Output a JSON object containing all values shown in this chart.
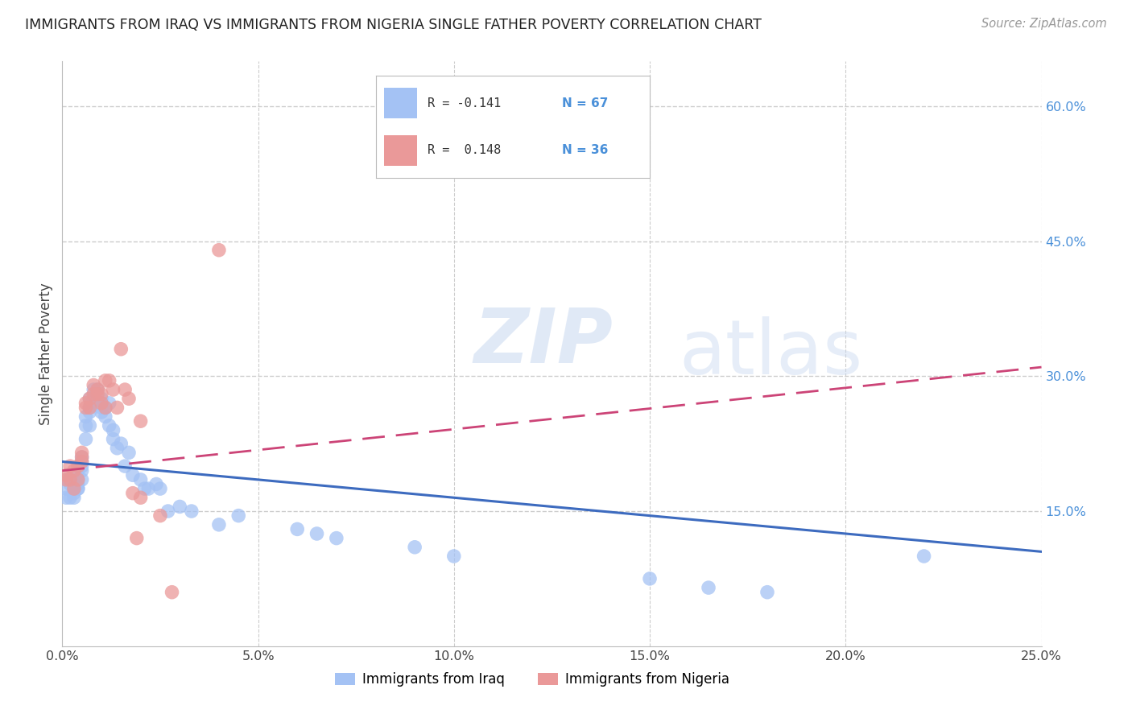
{
  "title": "IMMIGRANTS FROM IRAQ VS IMMIGRANTS FROM NIGERIA SINGLE FATHER POVERTY CORRELATION CHART",
  "source": "Source: ZipAtlas.com",
  "ylabel": "Single Father Poverty",
  "xlim": [
    0.0,
    0.25
  ],
  "ylim": [
    0.0,
    0.65
  ],
  "iraq_R": "-0.141",
  "iraq_N": "67",
  "nigeria_R": "0.148",
  "nigeria_N": "36",
  "iraq_color": "#a4c2f4",
  "nigeria_color": "#ea9999",
  "iraq_line_color": "#3d6bbf",
  "nigeria_line_color": "#cc4477",
  "background_color": "#ffffff",
  "grid_color": "#cccccc",
  "right_axis_color": "#4a90d9",
  "watermark_zip": "ZIP",
  "watermark_atlas": "atlas",
  "iraq_x": [
    0.001,
    0.001,
    0.001,
    0.002,
    0.002,
    0.002,
    0.002,
    0.003,
    0.003,
    0.003,
    0.003,
    0.004,
    0.004,
    0.004,
    0.004,
    0.004,
    0.005,
    0.005,
    0.005,
    0.005,
    0.005,
    0.006,
    0.006,
    0.006,
    0.007,
    0.007,
    0.007,
    0.007,
    0.008,
    0.008,
    0.008,
    0.009,
    0.009,
    0.01,
    0.01,
    0.01,
    0.01,
    0.011,
    0.011,
    0.012,
    0.012,
    0.013,
    0.013,
    0.014,
    0.015,
    0.016,
    0.017,
    0.018,
    0.02,
    0.021,
    0.022,
    0.024,
    0.025,
    0.027,
    0.03,
    0.033,
    0.04,
    0.045,
    0.06,
    0.065,
    0.07,
    0.09,
    0.1,
    0.15,
    0.165,
    0.18,
    0.22
  ],
  "iraq_y": [
    0.175,
    0.165,
    0.185,
    0.185,
    0.185,
    0.18,
    0.165,
    0.175,
    0.17,
    0.18,
    0.165,
    0.195,
    0.18,
    0.175,
    0.185,
    0.175,
    0.21,
    0.205,
    0.2,
    0.185,
    0.195,
    0.23,
    0.255,
    0.245,
    0.265,
    0.26,
    0.275,
    0.245,
    0.275,
    0.275,
    0.285,
    0.285,
    0.27,
    0.27,
    0.275,
    0.265,
    0.26,
    0.255,
    0.265,
    0.245,
    0.27,
    0.24,
    0.23,
    0.22,
    0.225,
    0.2,
    0.215,
    0.19,
    0.185,
    0.175,
    0.175,
    0.18,
    0.175,
    0.15,
    0.155,
    0.15,
    0.135,
    0.145,
    0.13,
    0.125,
    0.12,
    0.11,
    0.1,
    0.075,
    0.065,
    0.06,
    0.1
  ],
  "nigeria_x": [
    0.001,
    0.001,
    0.002,
    0.002,
    0.003,
    0.003,
    0.004,
    0.004,
    0.005,
    0.005,
    0.005,
    0.006,
    0.006,
    0.007,
    0.007,
    0.008,
    0.008,
    0.009,
    0.009,
    0.01,
    0.01,
    0.011,
    0.011,
    0.012,
    0.013,
    0.014,
    0.015,
    0.016,
    0.017,
    0.018,
    0.019,
    0.02,
    0.025,
    0.028,
    0.04,
    0.02
  ],
  "nigeria_y": [
    0.185,
    0.19,
    0.185,
    0.2,
    0.175,
    0.195,
    0.185,
    0.2,
    0.21,
    0.205,
    0.215,
    0.265,
    0.27,
    0.265,
    0.275,
    0.28,
    0.29,
    0.28,
    0.285,
    0.27,
    0.28,
    0.265,
    0.295,
    0.295,
    0.285,
    0.265,
    0.33,
    0.285,
    0.275,
    0.17,
    0.12,
    0.165,
    0.145,
    0.06,
    0.44,
    0.25
  ],
  "iraq_line_x": [
    0.0,
    0.25
  ],
  "iraq_line_y": [
    0.205,
    0.105
  ],
  "nigeria_line_x": [
    0.0,
    0.25
  ],
  "nigeria_line_y": [
    0.195,
    0.31
  ]
}
